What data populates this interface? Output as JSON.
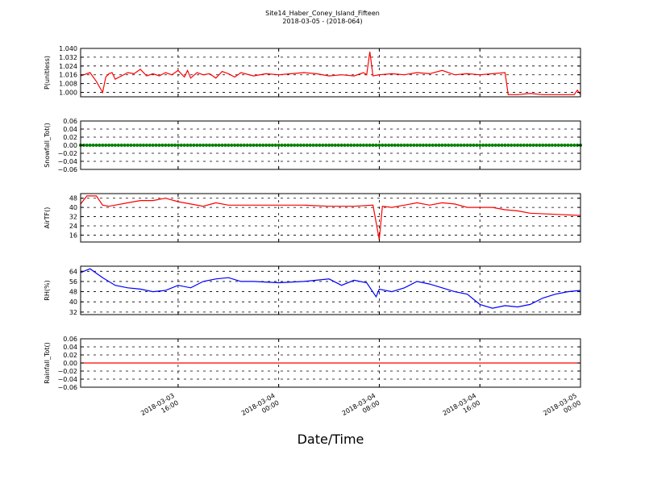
{
  "title": "Site14_Haber_Coney_Island_Fifteen",
  "subtitle": "2018-03-05 - (2018-064)",
  "xlabel": "Date/Time",
  "chart_data": {
    "type": "line",
    "grid": true,
    "x_range": [
      "2018-03-03 08:15",
      "2018-03-05 00:00"
    ],
    "x_ticks": [
      {
        "at": "2018-03-03 16:00",
        "line1": "2018-03-03",
        "line2": "16:00"
      },
      {
        "at": "2018-03-04 00:00",
        "line1": "2018-03-04",
        "line2": "00:00"
      },
      {
        "at": "2018-03-04 08:00",
        "line1": "2018-03-04",
        "line2": "08:00"
      },
      {
        "at": "2018-03-04 16:00",
        "line1": "2018-03-04",
        "line2": "16:00"
      },
      {
        "at": "2018-03-05 00:00",
        "line1": "2018-03-05",
        "line2": "00:00"
      }
    ],
    "panels": [
      {
        "ylabel": "P(unitless)",
        "color": "#ff0000",
        "marker": "none",
        "ylim": [
          0.996,
          1.04
        ],
        "yticks": [
          "1.040",
          "1.032",
          "1.024",
          "1.016",
          "1.008",
          "1.000"
        ],
        "ytick_values": [
          1.04,
          1.032,
          1.024,
          1.016,
          1.008,
          1.0
        ],
        "x": [
          "2018-03-03 08:15",
          "2018-03-03 09:00",
          "2018-03-03 09:30",
          "2018-03-03 10:00",
          "2018-03-03 10:15",
          "2018-03-03 10:30",
          "2018-03-03 10:45",
          "2018-03-03 11:00",
          "2018-03-03 11:30",
          "2018-03-03 12:00",
          "2018-03-03 12:30",
          "2018-03-03 13:00",
          "2018-03-03 13:30",
          "2018-03-03 14:00",
          "2018-03-03 14:30",
          "2018-03-03 15:00",
          "2018-03-03 15:30",
          "2018-03-03 16:00",
          "2018-03-03 16:30",
          "2018-03-03 16:45",
          "2018-03-03 17:00",
          "2018-03-03 17:30",
          "2018-03-03 18:00",
          "2018-03-03 18:30",
          "2018-03-03 19:00",
          "2018-03-03 19:30",
          "2018-03-03 20:00",
          "2018-03-03 20:30",
          "2018-03-03 21:00",
          "2018-03-03 22:00",
          "2018-03-03 23:00",
          "2018-03-04 00:00",
          "2018-03-04 01:00",
          "2018-03-04 02:00",
          "2018-03-04 03:00",
          "2018-03-04 04:00",
          "2018-03-04 05:00",
          "2018-03-04 06:00",
          "2018-03-04 06:45",
          "2018-03-04 07:00",
          "2018-03-04 07:15",
          "2018-03-04 07:30",
          "2018-03-04 08:00",
          "2018-03-04 09:00",
          "2018-03-04 10:00",
          "2018-03-04 11:00",
          "2018-03-04 12:00",
          "2018-03-04 13:00",
          "2018-03-04 14:00",
          "2018-03-04 15:00",
          "2018-03-04 16:00",
          "2018-03-04 17:00",
          "2018-03-04 18:00",
          "2018-03-04 18:15",
          "2018-03-04 19:00",
          "2018-03-04 20:00",
          "2018-03-04 21:00",
          "2018-03-04 22:00",
          "2018-03-04 23:00",
          "2018-03-04 23:30",
          "2018-03-04 23:45",
          "2018-03-05 00:00"
        ],
        "values": [
          1.015,
          1.018,
          1.01,
          1.0,
          1.014,
          1.017,
          1.018,
          1.012,
          1.015,
          1.018,
          1.017,
          1.021,
          1.015,
          1.017,
          1.015,
          1.018,
          1.016,
          1.02,
          1.014,
          1.02,
          1.013,
          1.018,
          1.016,
          1.017,
          1.013,
          1.019,
          1.017,
          1.014,
          1.018,
          1.015,
          1.017,
          1.016,
          1.017,
          1.018,
          1.017,
          1.015,
          1.016,
          1.015,
          1.018,
          1.016,
          1.037,
          1.015,
          1.016,
          1.017,
          1.016,
          1.018,
          1.017,
          1.02,
          1.016,
          1.017,
          1.016,
          1.017,
          1.018,
          0.998,
          0.998,
          0.999,
          0.998,
          0.998,
          0.998,
          0.998,
          1.002,
          0.998
        ]
      },
      {
        "ylabel": "Snowfall_Tot()",
        "color": "#008000",
        "marker": "circle",
        "ylim": [
          -0.06,
          0.06
        ],
        "yticks": [
          "0.06",
          "0.04",
          "0.02",
          "0.00",
          "−0.02",
          "−0.04",
          "−0.06"
        ],
        "ytick_values": [
          0.06,
          0.04,
          0.02,
          0.0,
          -0.02,
          -0.04,
          -0.06
        ],
        "x": [
          "2018-03-03 08:15",
          "2018-03-05 00:00"
        ],
        "values": [
          0.0,
          0.0
        ],
        "sampling": "every 15 minutes, all 0.00"
      },
      {
        "ylabel": "AirTF()",
        "color": "#ff0000",
        "marker": "none",
        "ylim": [
          10,
          52
        ],
        "yticks": [
          "48",
          "40",
          "32",
          "24",
          "16"
        ],
        "ytick_values": [
          48,
          40,
          32,
          24,
          16
        ],
        "x": [
          "2018-03-03 08:15",
          "2018-03-03 08:45",
          "2018-03-03 09:30",
          "2018-03-03 10:00",
          "2018-03-03 10:30",
          "2018-03-03 11:00",
          "2018-03-03 12:00",
          "2018-03-03 13:00",
          "2018-03-03 14:00",
          "2018-03-03 15:00",
          "2018-03-03 16:00",
          "2018-03-03 17:00",
          "2018-03-03 18:00",
          "2018-03-03 19:00",
          "2018-03-03 20:00",
          "2018-03-03 22:00",
          "2018-03-04 00:00",
          "2018-03-04 02:00",
          "2018-03-04 04:00",
          "2018-03-04 06:00",
          "2018-03-04 07:30",
          "2018-03-04 08:00",
          "2018-03-04 08:15",
          "2018-03-04 09:00",
          "2018-03-04 10:00",
          "2018-03-04 11:00",
          "2018-03-04 12:00",
          "2018-03-04 13:00",
          "2018-03-04 14:00",
          "2018-03-04 15:00",
          "2018-03-04 16:00",
          "2018-03-04 17:00",
          "2018-03-04 18:00",
          "2018-03-04 19:00",
          "2018-03-04 20:00",
          "2018-03-04 22:00",
          "2018-03-05 00:00"
        ],
        "values": [
          43,
          50,
          50,
          42,
          41,
          42,
          44,
          46,
          46,
          48,
          45,
          43,
          41,
          44,
          42,
          42,
          42,
          42,
          41,
          41,
          42,
          12,
          41,
          40,
          42,
          44,
          42,
          44,
          43,
          40,
          40,
          40,
          38,
          37,
          35,
          34,
          33
        ]
      },
      {
        "ylabel": "RH(%)",
        "color": "#0000ff",
        "marker": "none",
        "ylim": [
          30,
          68
        ],
        "yticks": [
          "64",
          "56",
          "48",
          "40",
          "32"
        ],
        "ytick_values": [
          64,
          56,
          48,
          40,
          32
        ],
        "x": [
          "2018-03-03 08:15",
          "2018-03-03 09:00",
          "2018-03-03 10:00",
          "2018-03-03 11:00",
          "2018-03-03 12:00",
          "2018-03-03 13:00",
          "2018-03-03 14:00",
          "2018-03-03 15:00",
          "2018-03-03 16:00",
          "2018-03-03 17:00",
          "2018-03-03 18:00",
          "2018-03-03 19:00",
          "2018-03-03 20:00",
          "2018-03-03 21:00",
          "2018-03-03 22:00",
          "2018-03-04 00:00",
          "2018-03-04 02:00",
          "2018-03-04 04:00",
          "2018-03-04 05:00",
          "2018-03-04 06:00",
          "2018-03-04 07:00",
          "2018-03-04 07:45",
          "2018-03-04 08:00",
          "2018-03-04 09:00",
          "2018-03-04 10:00",
          "2018-03-04 11:00",
          "2018-03-04 12:00",
          "2018-03-04 13:00",
          "2018-03-04 14:00",
          "2018-03-04 15:00",
          "2018-03-04 16:00",
          "2018-03-04 17:00",
          "2018-03-04 18:00",
          "2018-03-04 19:00",
          "2018-03-04 20:00",
          "2018-03-04 21:00",
          "2018-03-04 22:00",
          "2018-03-04 23:00",
          "2018-03-05 00:00"
        ],
        "values": [
          63,
          66,
          59,
          53,
          51,
          50,
          48,
          49,
          53,
          51,
          56,
          58,
          59,
          56,
          56,
          55,
          56,
          58,
          53,
          57,
          55,
          44,
          50,
          48,
          51,
          56,
          54,
          51,
          48,
          46,
          38,
          35,
          37,
          36,
          38,
          43,
          46,
          48,
          49
        ]
      },
      {
        "ylabel": "Rainfall_Tot()",
        "color": "#ff0000",
        "marker": "none",
        "ylim": [
          -0.06,
          0.06
        ],
        "yticks": [
          "0.06",
          "0.04",
          "0.02",
          "0.00",
          "−0.02",
          "−0.04",
          "−0.06"
        ],
        "ytick_values": [
          0.06,
          0.04,
          0.02,
          0.0,
          -0.02,
          -0.04,
          -0.06
        ],
        "x": [
          "2018-03-03 08:15",
          "2018-03-05 00:00"
        ],
        "values": [
          0.0,
          0.0
        ]
      }
    ]
  }
}
